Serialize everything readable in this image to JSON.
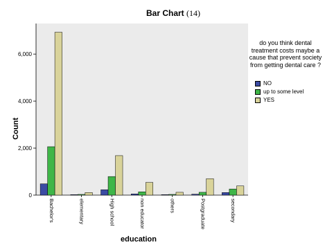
{
  "title": {
    "text": "Bar Chart",
    "number": "(14)"
  },
  "legend": {
    "title": "do you think dental treatment costs maybe a cause that prevent society from getting dental care ?",
    "placement": "right"
  },
  "chart_data": {
    "type": "bar",
    "title": "Bar Chart (14)",
    "xlabel": "education",
    "ylabel": "Count",
    "ylim": [
      0,
      7300
    ],
    "yticks": [
      {
        "value": 0,
        "label": "0"
      },
      {
        "value": 2000,
        "label": "2,000"
      },
      {
        "value": 4000,
        "label": "4,000"
      },
      {
        "value": 6000,
        "label": "6,000"
      }
    ],
    "categories": [
      "Bachelor's",
      "elementary",
      "High school",
      "non educator",
      "others",
      "Postgraduate",
      "secondary"
    ],
    "series": [
      {
        "name": "NO",
        "color": "#3b4ba3",
        "values": [
          480,
          20,
          230,
          50,
          20,
          40,
          110
        ]
      },
      {
        "name": "up to some level",
        "color": "#3fb648",
        "values": [
          2060,
          30,
          790,
          140,
          30,
          120,
          260
        ]
      },
      {
        "name": "YES",
        "color": "#d9d39a",
        "values": [
          6930,
          110,
          1680,
          540,
          120,
          700,
          390
        ]
      }
    ],
    "plot_background": "#ebebeb",
    "grid": false
  }
}
